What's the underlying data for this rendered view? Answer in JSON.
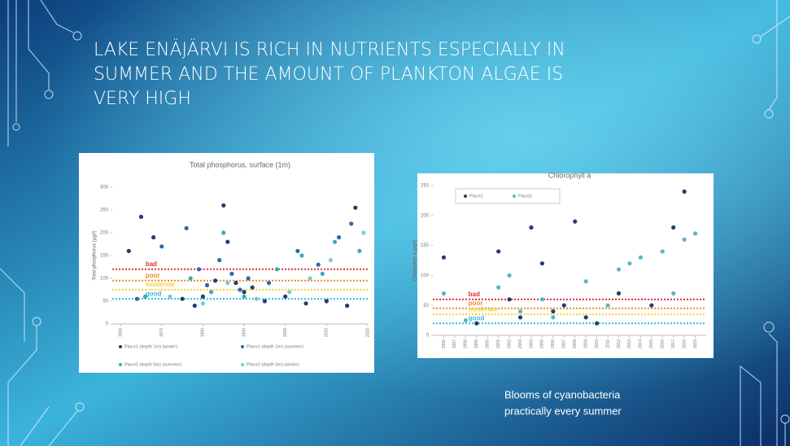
{
  "slide": {
    "title_lines": [
      "LAKE ENÄJÄRVI IS RICH IN NUTRIENTS ESPECIALLY IN",
      "SUMMER AND THE AMOUNT OF PLANKTON ALGAE IS",
      "VERY HIGH"
    ],
    "caption_lines": [
      "Blooms of cyanobacteria",
      "practically every summer"
    ]
  },
  "chart_data": [
    {
      "type": "scatter",
      "title": "Total phosphorus, surface (1m)",
      "y_label": "Total phosphorus (µg/l)",
      "xlim": [
        1958,
        2020
      ],
      "xticks": [
        1960,
        1970,
        1980,
        1990,
        2000,
        2010,
        2020
      ],
      "ylim": [
        0,
        300
      ],
      "yticks": [
        0,
        50,
        100,
        150,
        200,
        250,
        300
      ],
      "thresholds": [
        {
          "label": "bad",
          "value": 120,
          "color": "#e0303a"
        },
        {
          "label": "poor",
          "value": 95,
          "color": "#f08a24"
        },
        {
          "label": "moderate",
          "value": 75,
          "color": "#f2d33c"
        },
        {
          "label": "good",
          "value": 55,
          "color": "#37b8d8"
        }
      ],
      "series": [
        {
          "name": "Place1 (depth 1m) (winter)",
          "color": "#1f3f6e",
          "x": [
            1962,
            1965,
            1968,
            1975,
            1978,
            1980,
            1983,
            1985,
            1986,
            1988,
            1990,
            1992,
            1995,
            2000,
            2005,
            2010,
            2015,
            2017
          ],
          "values": [
            160,
            235,
            190,
            55,
            40,
            60,
            95,
            260,
            180,
            90,
            70,
            80,
            50,
            60,
            45,
            50,
            40,
            255
          ]
        },
        {
          "name": "Place1 (depth 1m) (summer)",
          "color": "#2c6aa8",
          "x": [
            1964,
            1970,
            1976,
            1979,
            1981,
            1984,
            1987,
            1989,
            1991,
            1996,
            2003,
            2008,
            2013,
            2016
          ],
          "values": [
            55,
            170,
            210,
            120,
            85,
            140,
            110,
            75,
            100,
            90,
            160,
            130,
            190,
            220
          ]
        },
        {
          "name": "Place2 (depth 5m) (summer)",
          "color": "#3fa6c0",
          "x": [
            1966,
            1977,
            1982,
            1985,
            1990,
            1998,
            2004,
            2009,
            2012,
            2018
          ],
          "values": [
            60,
            100,
            70,
            200,
            60,
            120,
            150,
            110,
            180,
            160
          ]
        },
        {
          "name": "Place2 (depth 5m) (winter)",
          "color": "#7fc8d8",
          "x": [
            1972,
            1980,
            1986,
            1993,
            2001,
            2006,
            2011,
            2019
          ],
          "values": [
            60,
            45,
            90,
            55,
            70,
            100,
            140,
            200
          ]
        }
      ]
    },
    {
      "type": "scatter",
      "title": "Chlorophyll a",
      "y_label": "Chlorophyll a (µg/l)",
      "xlim": [
        1995,
        2020
      ],
      "xticks": [
        1996,
        1997,
        1998,
        1999,
        2000,
        2001,
        2002,
        2003,
        2004,
        2005,
        2006,
        2007,
        2008,
        2009,
        2010,
        2011,
        2012,
        2013,
        2014,
        2015,
        2016,
        2017,
        2018,
        2019
      ],
      "ylim": [
        0,
        250
      ],
      "yticks": [
        0,
        50,
        100,
        150,
        200,
        250
      ],
      "thresholds": [
        {
          "label": "bad",
          "value": 60,
          "color": "#e0303a"
        },
        {
          "label": "poor",
          "value": 45,
          "color": "#f08a24"
        },
        {
          "label": "moderate",
          "value": 35,
          "color": "#f2d33c"
        },
        {
          "label": "good",
          "value": 20,
          "color": "#37b8d8"
        }
      ],
      "series": [
        {
          "name": "Place1",
          "color": "#1f3f6e",
          "x": [
            1996,
            1999,
            2001,
            2002,
            2003,
            2004,
            2005,
            2006,
            2007,
            2008,
            2009,
            2010,
            2012,
            2015,
            2017,
            2018
          ],
          "values": [
            130,
            20,
            140,
            60,
            30,
            180,
            120,
            40,
            50,
            190,
            30,
            20,
            70,
            50,
            180,
            240
          ]
        },
        {
          "name": "Place2",
          "color": "#5ab4cc",
          "x": [
            1996,
            1998,
            2001,
            2002,
            2003,
            2005,
            2006,
            2009,
            2011,
            2012,
            2013,
            2014,
            2016,
            2017,
            2018,
            2019
          ],
          "values": [
            70,
            25,
            80,
            100,
            40,
            60,
            30,
            90,
            50,
            110,
            120,
            130,
            140,
            70,
            160,
            170
          ]
        }
      ]
    }
  ]
}
